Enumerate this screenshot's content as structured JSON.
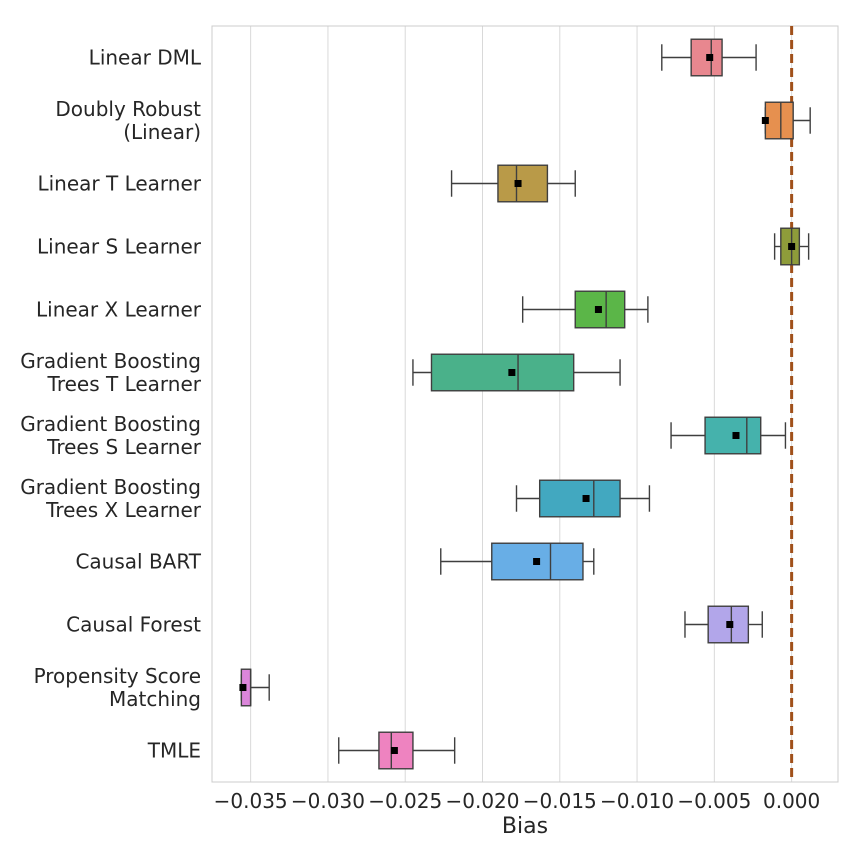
{
  "chart_data": {
    "type": "box",
    "xlabel": "Bias",
    "ylabel": "",
    "xlim": [
      -0.0375,
      0.003
    ],
    "xticks": [
      -0.035,
      -0.03,
      -0.025,
      -0.02,
      -0.015,
      -0.01,
      -0.005,
      0.0
    ],
    "xtick_labels": [
      "−0.035",
      "−0.030",
      "−0.025",
      "−0.020",
      "−0.015",
      "−0.010",
      "−0.005",
      "0.000"
    ],
    "grid": "vertical",
    "reference_line": {
      "x": 0.0,
      "style": "dashed",
      "color": "#A0501A"
    },
    "mean_marker": "black square",
    "series": [
      {
        "label": "Linear DML",
        "color": "#E8878F",
        "whisker_low": -0.0084,
        "q1": -0.0065,
        "median": -0.0052,
        "q3": -0.0045,
        "whisker_high": -0.0023,
        "mean": -0.0053
      },
      {
        "label": "Doubly Robust\n(Linear)",
        "color": "#E6904F",
        "whisker_low": -0.0017,
        "q1": -0.0017,
        "median": -0.0007,
        "q3": 0.0001,
        "whisker_high": 0.0012,
        "mean": -0.0017
      },
      {
        "label": "Linear T Learner",
        "color": "#B99A48",
        "whisker_low": -0.022,
        "q1": -0.019,
        "median": -0.0178,
        "q3": -0.0158,
        "whisker_high": -0.014,
        "mean": -0.0177
      },
      {
        "label": "Linear S Learner",
        "color": "#8E9C3A",
        "whisker_low": -0.0011,
        "q1": -0.0007,
        "median": 0.0,
        "q3": 0.0005,
        "whisker_high": 0.0011,
        "mean": 0.0
      },
      {
        "label": "Linear X Learner",
        "color": "#5BB648",
        "whisker_low": -0.0174,
        "q1": -0.014,
        "median": -0.012,
        "q3": -0.0108,
        "whisker_high": -0.0093,
        "mean": -0.0125
      },
      {
        "label": "Gradient Boosting\nTrees T Learner",
        "color": "#4AB18A",
        "whisker_low": -0.0245,
        "q1": -0.0233,
        "median": -0.0177,
        "q3": -0.0141,
        "whisker_high": -0.0111,
        "mean": -0.0181
      },
      {
        "label": "Gradient Boosting\nTrees S Learner",
        "color": "#45B2AC",
        "whisker_low": -0.0078,
        "q1": -0.0056,
        "median": -0.0029,
        "q3": -0.002,
        "whisker_high": -0.0004,
        "mean": -0.0036
      },
      {
        "label": "Gradient Boosting\nTrees X Learner",
        "color": "#42A8C0",
        "whisker_low": -0.0178,
        "q1": -0.0163,
        "median": -0.0128,
        "q3": -0.0111,
        "whisker_high": -0.0092,
        "mean": -0.0133
      },
      {
        "label": "Causal BART",
        "color": "#68AEE6",
        "whisker_low": -0.0227,
        "q1": -0.0194,
        "median": -0.0156,
        "q3": -0.0135,
        "whisker_high": -0.0128,
        "mean": -0.0165
      },
      {
        "label": "Causal Forest",
        "color": "#B2A6EA",
        "whisker_low": -0.0069,
        "q1": -0.0054,
        "median": -0.0039,
        "q3": -0.0028,
        "whisker_high": -0.0019,
        "mean": -0.004
      },
      {
        "label": "Propensity Score\nMatching",
        "color": "#DB86DA",
        "whisker_low": -0.0356,
        "q1": -0.0356,
        "median": -0.035,
        "q3": -0.035,
        "whisker_high": -0.0338,
        "mean": -0.0355
      },
      {
        "label": "TMLE",
        "color": "#EE83C0",
        "whisker_low": -0.0293,
        "q1": -0.0267,
        "median": -0.0259,
        "q3": -0.0245,
        "whisker_high": -0.0218,
        "mean": -0.0257
      }
    ]
  }
}
